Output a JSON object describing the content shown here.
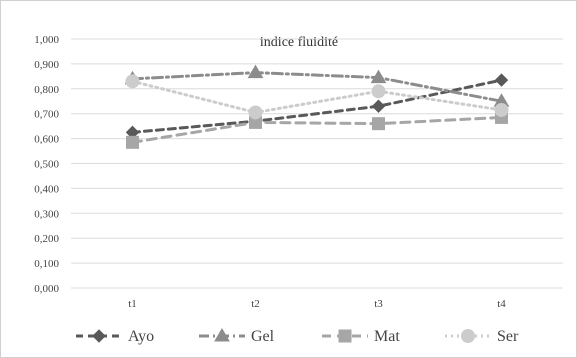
{
  "chart_data": {
    "type": "line",
    "title": "indice fluidité",
    "xlabel": "",
    "ylabel": "",
    "categories": [
      "t1",
      "t2",
      "t3",
      "t4"
    ],
    "ylim": [
      0,
      1
    ],
    "yticks": [
      "0,000",
      "0,100",
      "0,200",
      "0,300",
      "0,400",
      "0,500",
      "0,600",
      "0,700",
      "0,800",
      "0,900",
      "1,000"
    ],
    "grid": true,
    "legend_position": "bottom",
    "series": [
      {
        "name": "Ayo",
        "values": [
          0.625,
          0.67,
          0.73,
          0.835
        ],
        "color": "#595959",
        "marker": "diamond",
        "dash": "dash"
      },
      {
        "name": "Gel",
        "values": [
          0.84,
          0.865,
          0.845,
          0.75
        ],
        "color": "#8c8c8c",
        "marker": "triangle",
        "dash": "dash-dot"
      },
      {
        "name": "Mat",
        "values": [
          0.585,
          0.665,
          0.66,
          0.685
        ],
        "color": "#a6a6a6",
        "marker": "square",
        "dash": "long-dash"
      },
      {
        "name": "Ser",
        "values": [
          0.83,
          0.705,
          0.79,
          0.715
        ],
        "color": "#cccccc",
        "marker": "circle",
        "dash": "dot"
      }
    ]
  }
}
